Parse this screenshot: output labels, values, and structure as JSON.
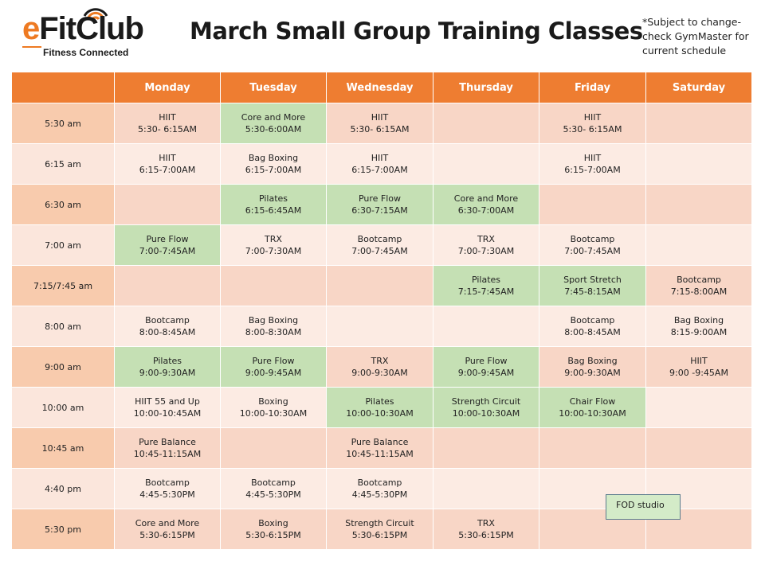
{
  "logo": {
    "brand_e": "e",
    "brand_rest": "FitClub",
    "tagline": "Fitness Connected",
    "icon": "wifi-signal-icon",
    "accent": "#ee7a22"
  },
  "title": "March Small Group Training Classes",
  "note": {
    "line1": "*Subject to change-",
    "line2": "check GymMaster for",
    "line3": "current schedule"
  },
  "colors": {
    "header": "#ee7d31",
    "row_dark": "#f8cbad",
    "row_light": "#fbe6dc",
    "highlight_green": "#c5e0b4"
  },
  "schedule": {
    "days": [
      "Monday",
      "Tuesday",
      "Wednesday",
      "Thursday",
      "Friday",
      "Saturday"
    ],
    "rows": [
      {
        "time": "5:30 am",
        "cells": [
          {
            "name": "HIIT",
            "time": "5:30- 6:15AM",
            "green": false
          },
          {
            "name": "Core and More",
            "time": "5:30-6:00AM",
            "green": true
          },
          {
            "name": "HIIT",
            "time": "5:30- 6:15AM",
            "green": false
          },
          {
            "name": "",
            "time": "",
            "green": false
          },
          {
            "name": "HIIT",
            "time": "5:30- 6:15AM",
            "green": false
          },
          {
            "name": "",
            "time": "",
            "green": false
          }
        ]
      },
      {
        "time": "6:15 am",
        "cells": [
          {
            "name": "HIIT",
            "time": "6:15-7:00AM",
            "green": false
          },
          {
            "name": "Bag Boxing",
            "time": "6:15-7:00AM",
            "green": false
          },
          {
            "name": "HIIT",
            "time": "6:15-7:00AM",
            "green": false
          },
          {
            "name": "",
            "time": "",
            "green": false
          },
          {
            "name": "HIIT",
            "time": "6:15-7:00AM",
            "green": false
          },
          {
            "name": "",
            "time": "",
            "green": false
          }
        ]
      },
      {
        "time": "6:30 am",
        "cells": [
          {
            "name": "",
            "time": "",
            "green": false
          },
          {
            "name": "Pilates",
            "time": "6:15-6:45AM",
            "green": true
          },
          {
            "name": "Pure Flow",
            "time": "6:30-7:15AM",
            "green": true
          },
          {
            "name": "Core and More",
            "time": "6:30-7:00AM",
            "green": true
          },
          {
            "name": "",
            "time": "",
            "green": false
          },
          {
            "name": "",
            "time": "",
            "green": false
          }
        ]
      },
      {
        "time": "7:00 am",
        "cells": [
          {
            "name": "Pure Flow",
            "time": "7:00-7:45AM",
            "green": true
          },
          {
            "name": "TRX",
            "time": "7:00-7:30AM",
            "green": false
          },
          {
            "name": "Bootcamp",
            "time": "7:00-7:45AM",
            "green": false
          },
          {
            "name": "TRX",
            "time": "7:00-7:30AM",
            "green": false
          },
          {
            "name": "Bootcamp",
            "time": "7:00-7:45AM",
            "green": false
          },
          {
            "name": "",
            "time": "",
            "green": false
          }
        ]
      },
      {
        "time": "7:15/7:45 am",
        "cells": [
          {
            "name": "",
            "time": "",
            "green": false
          },
          {
            "name": "",
            "time": "",
            "green": false
          },
          {
            "name": "",
            "time": "",
            "green": false
          },
          {
            "name": "Pilates",
            "time": "7:15-7:45AM",
            "green": true
          },
          {
            "name": "Sport Stretch",
            "time": "7:45-8:15AM",
            "green": true
          },
          {
            "name": "Bootcamp",
            "time": "7:15-8:00AM",
            "green": false
          }
        ]
      },
      {
        "time": "8:00 am",
        "cells": [
          {
            "name": "Bootcamp",
            "time": "8:00-8:45AM",
            "green": false
          },
          {
            "name": "Bag Boxing",
            "time": "8:00-8:30AM",
            "green": false
          },
          {
            "name": "",
            "time": "",
            "green": false
          },
          {
            "name": "",
            "time": "",
            "green": false
          },
          {
            "name": "Bootcamp",
            "time": "8:00-8:45AM",
            "green": false
          },
          {
            "name": "Bag Boxing",
            "time": "8:15-9:00AM",
            "green": false
          }
        ]
      },
      {
        "time": "9:00 am",
        "cells": [
          {
            "name": "Pilates",
            "time": "9:00-9:30AM",
            "green": true
          },
          {
            "name": "Pure Flow",
            "time": "9:00-9:45AM",
            "green": true
          },
          {
            "name": "TRX",
            "time": "9:00-9:30AM",
            "green": false
          },
          {
            "name": "Pure Flow",
            "time": "9:00-9:45AM",
            "green": true
          },
          {
            "name": "Bag Boxing",
            "time": "9:00-9:30AM",
            "green": false
          },
          {
            "name": "HIIT",
            "time": "9:00 -9:45AM",
            "green": false
          }
        ]
      },
      {
        "time": "10:00 am",
        "cells": [
          {
            "name": "HIIT 55 and Up",
            "time": "10:00-10:45AM",
            "green": false
          },
          {
            "name": "Boxing",
            "time": "10:00-10:30AM",
            "green": false
          },
          {
            "name": "Pilates",
            "time": "10:00-10:30AM",
            "green": true
          },
          {
            "name": "Strength Circuit",
            "time": "10:00-10:30AM",
            "green": true
          },
          {
            "name": "Chair Flow",
            "time": "10:00-10:30AM",
            "green": true
          },
          {
            "name": "",
            "time": "",
            "green": false
          }
        ]
      },
      {
        "time": "10:45 am",
        "cells": [
          {
            "name": "Pure Balance",
            "time": "10:45-11:15AM",
            "green": false
          },
          {
            "name": "",
            "time": "",
            "green": false
          },
          {
            "name": "Pure Balance",
            "time": "10:45-11:15AM",
            "green": false
          },
          {
            "name": "",
            "time": "",
            "green": false
          },
          {
            "name": "",
            "time": "",
            "green": false
          },
          {
            "name": "",
            "time": "",
            "green": false
          }
        ]
      },
      {
        "time": "4:40 pm",
        "cells": [
          {
            "name": "Bootcamp",
            "time": "4:45-5:30PM",
            "green": false
          },
          {
            "name": "Bootcamp",
            "time": "4:45-5:30PM",
            "green": false
          },
          {
            "name": "Bootcamp",
            "time": "4:45-5:30PM",
            "green": false
          },
          {
            "name": "",
            "time": "",
            "green": false
          },
          {
            "name": "",
            "time": "",
            "green": false
          },
          {
            "name": "",
            "time": "",
            "green": false
          }
        ]
      },
      {
        "time": "5:30 pm",
        "cells": [
          {
            "name": "Core and More",
            "time": "5:30-6:15PM",
            "green": false
          },
          {
            "name": "Boxing",
            "time": "5:30-6:15PM",
            "green": false
          },
          {
            "name": "Strength Circuit",
            "time": "5:30-6:15PM",
            "green": false
          },
          {
            "name": "TRX",
            "time": "5:30-6:15PM",
            "green": false
          },
          {
            "name": "",
            "time": "",
            "green": false
          },
          {
            "name": "",
            "time": "",
            "green": false
          }
        ]
      }
    ]
  },
  "legend": {
    "label": "FOD studio"
  }
}
